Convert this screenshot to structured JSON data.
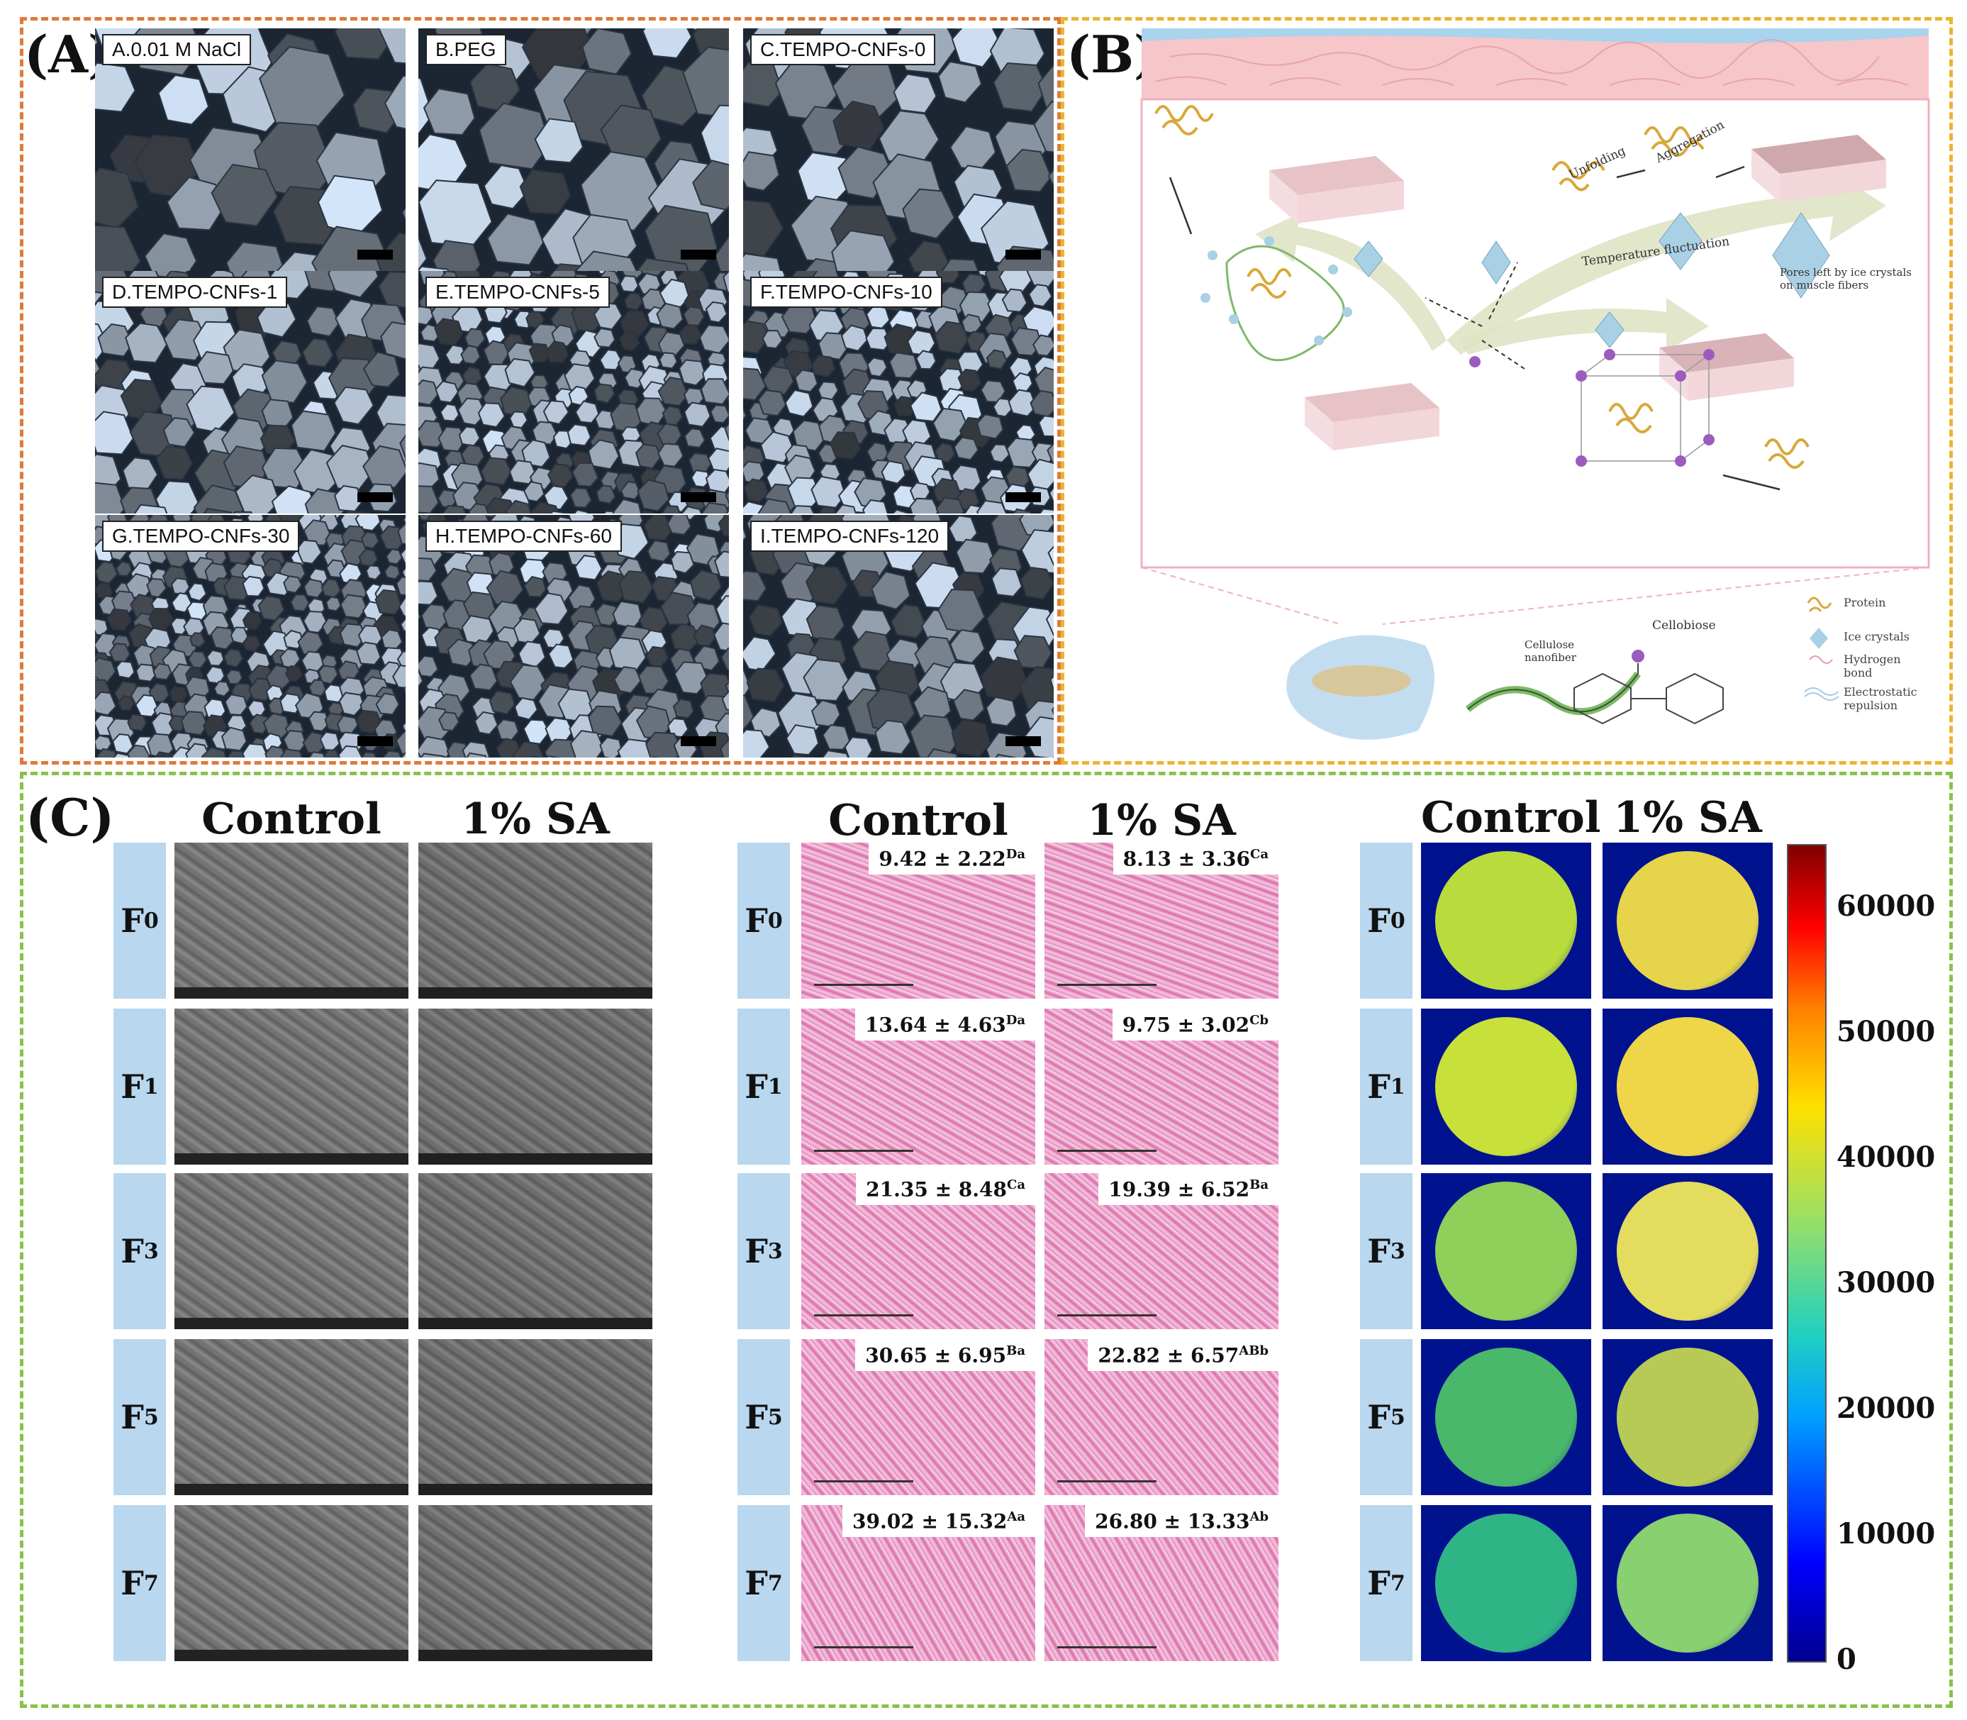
{
  "panels": {
    "A": {
      "label": "(A)"
    },
    "B": {
      "label": "(B)"
    },
    "C": {
      "label": "(C)"
    }
  },
  "micrographs": [
    {
      "caption": "A.0.01 M NaCl"
    },
    {
      "caption": "B.PEG"
    },
    {
      "caption": "C.TEMPO-CNFs-0"
    },
    {
      "caption": "D.TEMPO-CNFs-1"
    },
    {
      "caption": "E.TEMPO-CNFs-5"
    },
    {
      "caption": "F.TEMPO-CNFs-10"
    },
    {
      "caption": "G.TEMPO-CNFs-30"
    },
    {
      "caption": "H.TEMPO-CNFs-60"
    },
    {
      "caption": "I.TEMPO-CNFs-120"
    }
  ],
  "diagram": {
    "unfolding": "Unfolding",
    "aggregation": "Aggregation",
    "temperature": "Temperature fluctuation",
    "pores": "Pores left by ice crystals on muscle fibers",
    "cellobiose": "Cellobiose",
    "cellulose": "Cellulose nanofiber",
    "legend": {
      "protein": "Protein",
      "ice": "Ice crystals",
      "hbond": "Hydrogen bond",
      "electro": "Electrostatic repulsion"
    }
  },
  "panelC": {
    "control": "Control",
    "sa": "1% SA",
    "rows": [
      {
        "base": "F",
        "sub": "0"
      },
      {
        "base": "F",
        "sub": "1"
      },
      {
        "base": "F",
        "sub": "3"
      },
      {
        "base": "F",
        "sub": "5"
      },
      {
        "base": "F",
        "sub": "7"
      }
    ],
    "he_values": [
      {
        "control": "9.42 ± 2.22",
        "control_sup": "Da",
        "sa": "8.13 ± 3.36",
        "sa_sup": "Ca"
      },
      {
        "control": "13.64 ± 4.63",
        "control_sup": "Da",
        "sa": "9.75 ± 3.02",
        "sa_sup": "Cb"
      },
      {
        "control": "21.35 ± 8.48",
        "control_sup": "Ca",
        "sa": "19.39 ± 6.52",
        "sa_sup": "Ba"
      },
      {
        "control": "30.65 ± 6.95",
        "control_sup": "Ba",
        "sa": "22.82 ± 6.57",
        "sa_sup": "ABb"
      },
      {
        "control": "39.02 ± 15.32",
        "control_sup": "Aa",
        "sa": "26.80 ± 13.33",
        "sa_sup": "Ab"
      }
    ],
    "heat_colors": [
      {
        "control": "#b9dc3c",
        "sa": "#e6d54a"
      },
      {
        "control": "#c8e03a",
        "sa": "#efd648"
      },
      {
        "control": "#8ed05a",
        "sa": "#e4dc5e"
      },
      {
        "control": "#49b86a",
        "sa": "#b7ca56"
      },
      {
        "control": "#2fb585",
        "sa": "#88d070"
      }
    ],
    "colorbar_ticks": [
      "60000",
      "50000",
      "40000",
      "30000",
      "20000",
      "10000",
      "0"
    ]
  },
  "colors": {
    "panelA_border": "#e07a3a",
    "panelB_border": "#eab530",
    "panelC_border": "#8cc04c"
  }
}
